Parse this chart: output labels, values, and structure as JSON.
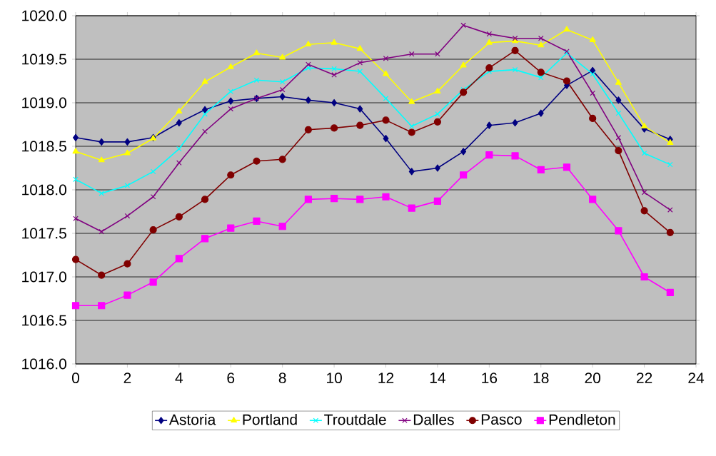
{
  "chart_data": {
    "type": "line",
    "x": [
      0,
      1,
      2,
      3,
      4,
      5,
      6,
      7,
      8,
      9,
      10,
      11,
      12,
      13,
      14,
      15,
      16,
      17,
      18,
      19,
      20,
      21,
      22,
      23
    ],
    "xlim": [
      0,
      24
    ],
    "xticks": [
      0,
      2,
      4,
      6,
      8,
      10,
      12,
      14,
      16,
      18,
      20,
      22,
      24
    ],
    "ylim": [
      1016,
      1020
    ],
    "yticks": [
      {
        "value": 1016,
        "label": "1016.0"
      },
      {
        "value": 1016.5,
        "label": "1016.5"
      },
      {
        "value": 1017,
        "label": "1017.0"
      },
      {
        "value": 1017.5,
        "label": "1017.5"
      },
      {
        "value": 1018,
        "label": "1018.0"
      },
      {
        "value": 1018.5,
        "label": "1018.5"
      },
      {
        "value": 1019,
        "label": "1019.0"
      },
      {
        "value": 1019.5,
        "label": "1019.5"
      },
      {
        "value": 1020,
        "label": "1020.0"
      }
    ],
    "grid": "y",
    "legend": "bottom",
    "line_style": "solid",
    "series": [
      {
        "name": "Astoria",
        "color": "#000080",
        "marker": "diamond",
        "values": [
          1018.6,
          1018.55,
          1018.55,
          1018.6,
          1018.77,
          1018.92,
          1019.02,
          1019.05,
          1019.07,
          1019.03,
          1019.0,
          1018.93,
          1018.59,
          1018.21,
          1018.25,
          1018.44,
          1018.74,
          1018.77,
          1018.88,
          1019.2,
          1019.37,
          1019.03,
          1018.7,
          1018.58
        ]
      },
      {
        "name": "Portland",
        "color": "#ffff00",
        "marker": "triangle",
        "values": [
          1018.44,
          1018.34,
          1018.42,
          1018.59,
          1018.9,
          1019.24,
          1019.41,
          1019.57,
          1019.52,
          1019.67,
          1019.69,
          1019.62,
          1019.33,
          1019.01,
          1019.13,
          1019.43,
          1019.69,
          1019.71,
          1019.66,
          1019.84,
          1019.72,
          1019.23,
          1018.73,
          1018.54
        ]
      },
      {
        "name": "Troutdale",
        "color": "#00ffff",
        "marker": "cross",
        "values": [
          1018.12,
          1017.96,
          1018.05,
          1018.21,
          1018.47,
          1018.87,
          1019.13,
          1019.26,
          1019.24,
          1019.4,
          1019.39,
          1019.36,
          1019.05,
          1018.73,
          1018.87,
          1019.15,
          1019.36,
          1019.38,
          1019.29,
          1019.57,
          1019.33,
          1018.88,
          1018.42,
          1018.29
        ]
      },
      {
        "name": "Dalles",
        "color": "#800080",
        "marker": "cross",
        "values": [
          1017.67,
          1017.52,
          1017.7,
          1017.92,
          1018.31,
          1018.67,
          1018.93,
          1019.05,
          1019.15,
          1019.44,
          1019.32,
          1019.46,
          1019.51,
          1019.56,
          1019.56,
          1019.89,
          1019.79,
          1019.74,
          1019.74,
          1019.59,
          1019.11,
          1018.6,
          1017.97,
          1017.77
        ]
      },
      {
        "name": "Pasco",
        "color": "#800000",
        "marker": "circle",
        "values": [
          1017.2,
          1017.02,
          1017.15,
          1017.54,
          1017.69,
          1017.89,
          1018.17,
          1018.33,
          1018.35,
          1018.69,
          1018.71,
          1018.74,
          1018.8,
          1018.66,
          1018.78,
          1019.12,
          1019.4,
          1019.6,
          1019.35,
          1019.25,
          1018.82,
          1018.45,
          1017.76,
          1017.51
        ]
      },
      {
        "name": "Pendleton",
        "color": "#ff00ff",
        "marker": "square",
        "values": [
          1016.67,
          1016.67,
          1016.79,
          1016.94,
          1017.21,
          1017.44,
          1017.56,
          1017.64,
          1017.58,
          1017.89,
          1017.9,
          1017.89,
          1017.92,
          1017.79,
          1017.87,
          1018.17,
          1018.4,
          1018.39,
          1018.23,
          1018.26,
          1017.89,
          1017.53,
          1017.0,
          1016.82
        ]
      }
    ]
  }
}
